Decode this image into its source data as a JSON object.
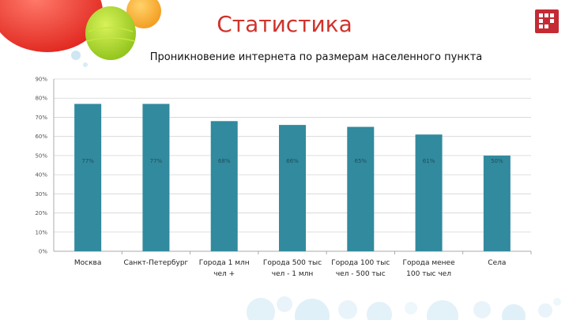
{
  "slide": {
    "title": "Статистика",
    "subtitle": "Проникновение интернета по размерам населенного пункта"
  },
  "colors": {
    "title": "#d0322b",
    "bar": "#318a9e",
    "logo": "#c52a34"
  },
  "icons": {
    "logo": "grid-logo-icon",
    "decoration": "balloons-illustration"
  },
  "chart_data": {
    "type": "bar",
    "title": "",
    "xlabel": "",
    "ylabel": "",
    "categories": [
      [
        "Москва"
      ],
      [
        "Санкт-Петербург"
      ],
      [
        "Города 1 млн",
        "чел +"
      ],
      [
        "Города 500 тыс",
        "чел - 1 млн"
      ],
      [
        "Города 100 тыс",
        "чел - 500 тыс"
      ],
      [
        "Города менее",
        "100 тыс чел"
      ],
      [
        "Села"
      ]
    ],
    "values": [
      77,
      77,
      68,
      66,
      65,
      61,
      50
    ],
    "data_labels": [
      "77%",
      "77%",
      "68%",
      "66%",
      "65%",
      "61%",
      "50%"
    ],
    "y_ticks": [
      "0%",
      "10%",
      "20%",
      "30%",
      "40%",
      "50%",
      "60%",
      "70%",
      "80%",
      "90%"
    ],
    "ylim": [
      0,
      90
    ],
    "grid": true,
    "legend": "none"
  }
}
